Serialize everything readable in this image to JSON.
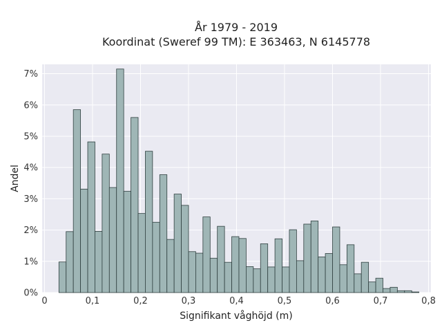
{
  "chart_data": {
    "type": "bar",
    "title": "År 1979 - 2019",
    "subtitle": "Koordinat (Sweref 99 TM): E 363463, N 6145778",
    "xlabel": "Signifikant våghöjd (m)",
    "ylabel": "Andel",
    "xlim": [
      -0.005,
      0.805
    ],
    "ylim": [
      0,
      0.073
    ],
    "xticks": [
      0,
      0.1,
      0.2,
      0.3,
      0.4,
      0.5,
      0.6,
      0.7,
      0.8
    ],
    "xtick_labels": [
      "0",
      "0,1",
      "0,2",
      "0,3",
      "0,4",
      "0,5",
      "0,6",
      "0,7",
      "0,8"
    ],
    "yticks": [
      0,
      0.01,
      0.02,
      0.03,
      0.04,
      0.05,
      0.06,
      0.07
    ],
    "ytick_labels": [
      "0%",
      "1%",
      "2%",
      "3%",
      "4%",
      "5%",
      "6%",
      "7%"
    ],
    "grid": true,
    "bin_start": 0.03,
    "bin_width": 0.015,
    "values": [
      0.0098,
      0.0195,
      0.0585,
      0.0331,
      0.0482,
      0.0196,
      0.0443,
      0.0336,
      0.0715,
      0.0324,
      0.056,
      0.0253,
      0.0452,
      0.0225,
      0.0377,
      0.017,
      0.0315,
      0.0279,
      0.0131,
      0.0126,
      0.0242,
      0.011,
      0.0212,
      0.0097,
      0.0179,
      0.0173,
      0.0083,
      0.0076,
      0.0156,
      0.0082,
      0.0172,
      0.0082,
      0.0201,
      0.0102,
      0.0219,
      0.0229,
      0.0114,
      0.0125,
      0.021,
      0.0089,
      0.0153,
      0.006,
      0.0097,
      0.0034,
      0.0046,
      0.0013,
      0.0017,
      0.0006,
      0.0006,
      0.0002
    ],
    "colors": {
      "bar_fill": "#9fb6b6",
      "bar_edge": "#2f3f3f",
      "plot_bg": "#eaeaf2",
      "grid": "#ffffff"
    }
  }
}
